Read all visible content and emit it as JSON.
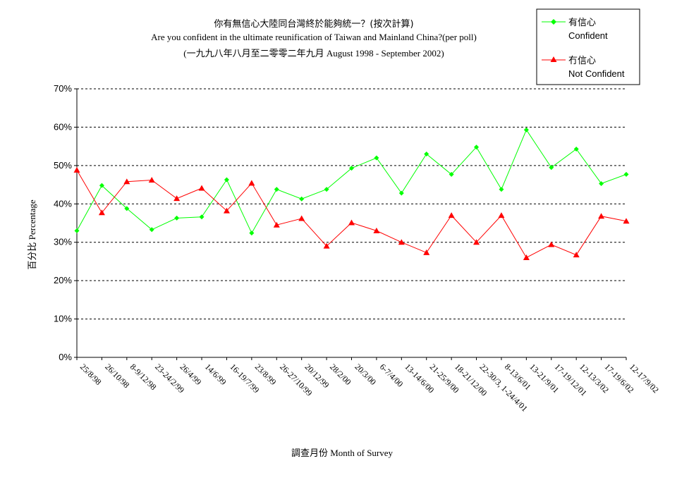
{
  "chart_data": {
    "type": "line",
    "title_lines": [
      "你有無信心大陸同台灣終於能夠統一？(按次計算)",
      "Are you confident in the ultimate reunification of Taiwan and Mainland China?(per poll)",
      "(一九九八年八月至二零零二年九月 August 1998 - September 2002)"
    ],
    "xlabel": "調查月份 Month of Survey",
    "ylabel": "百分比 Percentage",
    "ylim": [
      0,
      70
    ],
    "yticks": [
      "0%",
      "10%",
      "20%",
      "30%",
      "40%",
      "50%",
      "60%",
      "70%"
    ],
    "grid": "horizontal dashed",
    "legend_position": "top-right",
    "categories": [
      "25/8/98",
      "26/10/98",
      "8-9/12/98",
      "23-24/2/99",
      "26/4/99",
      "14/6/99",
      "16-19/7/99",
      "23/8/99",
      "26-27/10/99",
      "20/12/99",
      "28/2/00",
      "20/3/00",
      "6-7/4/00",
      "13-14/6/00",
      "21-25/9/00",
      "18-21/12/00",
      "22-30/3, 1-24/4/01",
      "8-13/6/01",
      "13-21/9/01",
      "17-19/12/01",
      "12-13/3/02",
      "17-19/6/02",
      "12-17/9/02"
    ],
    "series": [
      {
        "name": "有信心",
        "name_en": "Confident",
        "color": "#00ff00",
        "marker": "diamond",
        "values": [
          33,
          44.8,
          38.8,
          33.3,
          36.3,
          36.6,
          46.3,
          32.4,
          43.8,
          41.3,
          43.8,
          49.3,
          52,
          42.8,
          53,
          47.7,
          54.8,
          43.8,
          59.3,
          49.5,
          54.3,
          45.3,
          47.7
        ]
      },
      {
        "name": "冇信心",
        "name_en": "Not Confident",
        "color": "#ff0000",
        "marker": "triangle",
        "values": [
          48.8,
          37.7,
          45.8,
          46.2,
          41.4,
          44.1,
          38.2,
          45.4,
          34.5,
          36.2,
          29,
          35.1,
          33,
          30,
          27.3,
          37,
          30,
          37,
          26,
          29.4,
          26.7,
          36.8,
          35.5
        ]
      }
    ]
  }
}
